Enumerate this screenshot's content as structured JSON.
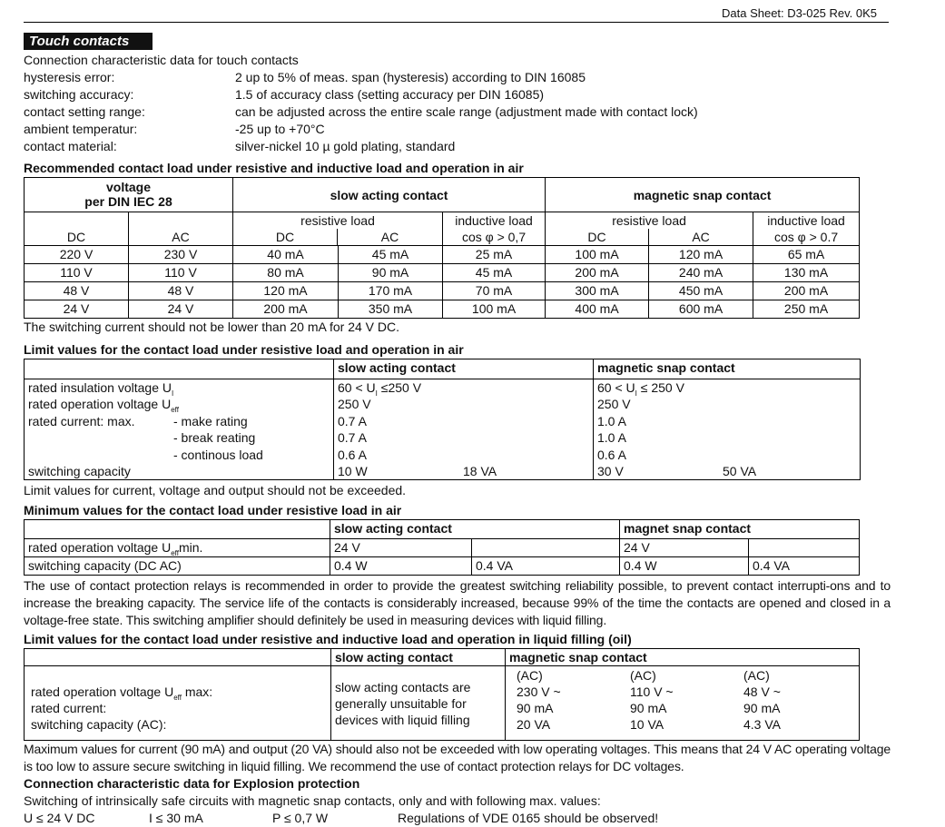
{
  "header": {
    "doc": "Data Sheet: D3-025   Rev. 0K5"
  },
  "section_title": "Touch contacts",
  "intro": "Connection characteristic data for touch contacts",
  "specs": [
    {
      "k": "hysteresis error:",
      "v": "2 up to 5% of meas. span (hysteresis) according to DIN 16085"
    },
    {
      "k": "switching accuracy:",
      "v": "1.5 of accuracy class (setting accuracy per DIN 16085)"
    },
    {
      "k": "contact setting range:",
      "v": "can be adjusted across the entire scale range (adjustment made with contact lock)"
    },
    {
      "k": "ambient temperatur:",
      "v": " -25 up to +70°C"
    },
    {
      "k": "contact material:",
      "v": "silver-nickel 10 µ gold plating, standard"
    }
  ],
  "t1": {
    "heading": "Recommended contact load under resistive and inductive load and operation in air",
    "voltage": "voltage",
    "per": "per DIN IEC 28",
    "slow": "slow acting contact",
    "snap": "magnetic snap contact",
    "resistive": "resistive load",
    "inductive": "inductive load",
    "dc": "DC",
    "ac": "AC",
    "cos1": "cos φ > 0,7",
    "cos2": "cos φ > 0.7",
    "rows": [
      [
        "220 V",
        "230 V",
        "40 mA",
        "45 mA",
        "25 mA",
        "100 mA",
        "120 mA",
        "65 mA"
      ],
      [
        "110 V",
        "110 V",
        "80 mA",
        "90 mA",
        "45 mA",
        "200 mA",
        "240 mA",
        "130 mA"
      ],
      [
        "48 V",
        "48 V",
        "120 mA",
        "170 mA",
        "70 mA",
        "300 mA",
        "450 mA",
        "200 mA"
      ],
      [
        "24 V",
        "24 V",
        "200 mA",
        "350 mA",
        "100 mA",
        "400 mA",
        "600 mA",
        "250 mA"
      ]
    ],
    "note": "The switching current should not be lower than 20 mA for 24 V DC."
  },
  "t2": {
    "heading": "Limit values for the contact load under resistive load and operation in air",
    "slow": "slow acting contact",
    "snap": "magnetic snap contact",
    "labels": [
      "rated insulation voltage U",
      "rated operation voltage U",
      "rated current:",
      "",
      "",
      "switching capacity"
    ],
    "subs": [
      "I",
      "eff",
      "",
      "",
      "",
      ""
    ],
    "suffix": [
      "",
      "",
      " max.",
      "",
      "",
      ""
    ],
    "sublabels": [
      "",
      "",
      "- make rating",
      "- break reating",
      "- continous load",
      ""
    ],
    "slow_vals": [
      "60 < U",
      "250 V",
      "0.7 A",
      "0.7 A",
      "0.6 A",
      "10 W"
    ],
    "slow_extra": "18 VA",
    "slow_tail": " ≤250 V",
    "snap_vals": [
      "60 < U",
      "250 V",
      "1.0 A",
      "1.0 A",
      "0.6 A",
      "30 V"
    ],
    "snap_extra": "50 VA",
    "snap_tail": "  ≤ 250 V",
    "note": "Limit values for current, voltage and output should not be exceeded."
  },
  "t3": {
    "heading": "Minimum values for the contact load under resistive load in air",
    "slow": "slow acting contact",
    "snap": "magnet snap contact",
    "r1": "rated operation voltage U",
    "r1sub": "eff",
    "r1suf": "min.",
    "r2": "switching capacity (DC AC)",
    "v1": [
      " 24 V",
      "",
      " 24 V",
      ""
    ],
    "v2": [
      "0.4 W",
      "0.4 VA",
      "0.4 W",
      "0.4 VA"
    ]
  },
  "para1": "The use of contact protection relays is recommended in order to provide the greatest switching reliability possible, to prevent contact interrupti-ons and to increase the breaking capacity. The service life of the contacts is considerably increased, because 99% of the time the contacts are opened and closed in a voltage-free state. This switching amplifier should definitely be used in measuring devices with liquid filling.",
  "t4": {
    "heading": "Limit values for the contact load under resistive and inductive load and operation in liquid filling (oil)",
    "slow": "slow acting contact",
    "snap": "magnetic snap contact",
    "l1": "rated operation voltage U",
    "l1sub": "eff",
    "l1suf": " max:",
    "l2": "rated current:",
    "l3": "switching capacity (AC):",
    "slow_text": [
      "slow acting contacts are",
      "generally unsuitable for",
      "devices with liquid filling"
    ],
    "cols": [
      [
        "(AC)",
        "230 V ~",
        "90 mA",
        "20 VA"
      ],
      [
        "(AC)",
        "110 V ~",
        "90 mA",
        "10 VA"
      ],
      [
        "(AC)",
        "48 V ~",
        "90 mA",
        "4.3 VA"
      ]
    ]
  },
  "para2": "Maximum values for current (90 mA) and output (20 VA) should also not be exceeded with low operating voltages. This means that 24 V AC operating voltage is too low to assure secure switching in liquid filling. We recommend the use of contact protection relays for DC voltages.",
  "ex": {
    "heading": "Connection characteristic data for Explosion protection",
    "line": "Switching of intrinsically safe circuits with magnetic snap contacts, only and with following max. values:",
    "u": "U ≤ 24 V DC",
    "i": "I ≤ 30 mA",
    "p": "P ≤ 0,7 W",
    "reg": "Regulations of VDE 0165 should be observed!"
  }
}
